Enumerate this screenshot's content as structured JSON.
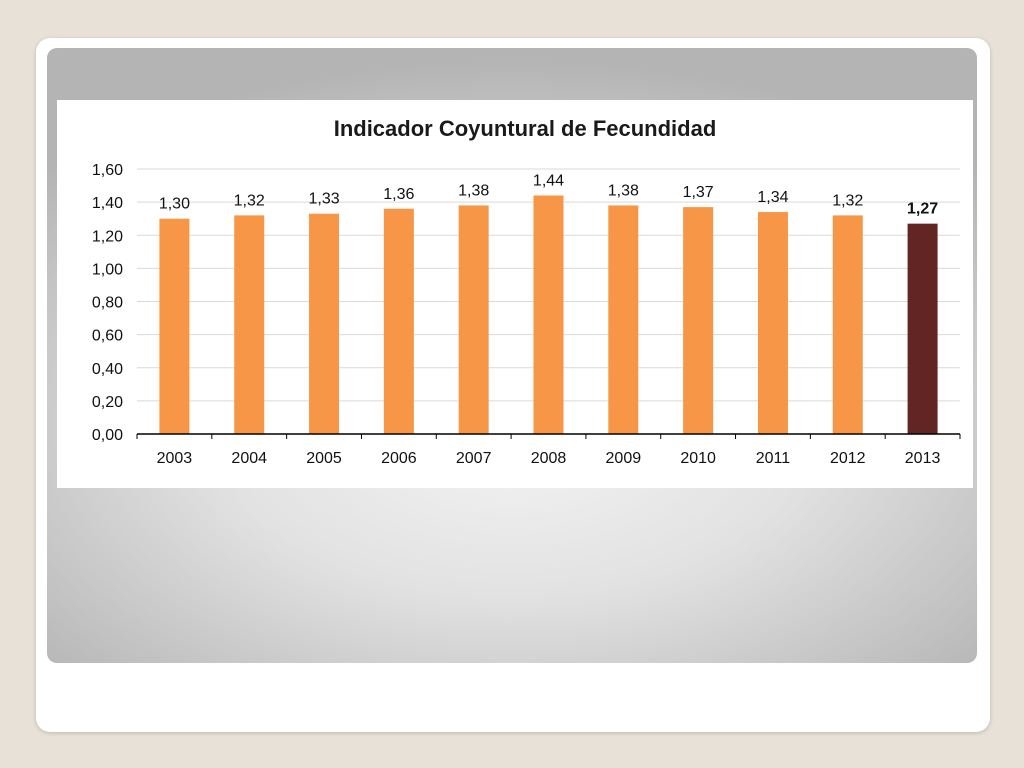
{
  "chart_data": {
    "type": "bar",
    "title": "Indicador Coyuntural de Fecundidad",
    "xlabel": "",
    "ylabel": "",
    "categories": [
      "2003",
      "2004",
      "2005",
      "2006",
      "2007",
      "2008",
      "2009",
      "2010",
      "2011",
      "2012",
      "2013"
    ],
    "values": [
      1.3,
      1.32,
      1.33,
      1.36,
      1.38,
      1.44,
      1.38,
      1.37,
      1.34,
      1.32,
      1.27
    ],
    "value_labels": [
      "1,30",
      "1,32",
      "1,33",
      "1,36",
      "1,38",
      "1,44",
      "1,38",
      "1,37",
      "1,34",
      "1,32",
      "1,27"
    ],
    "ylim": [
      0,
      1.6
    ],
    "yticks": [
      0,
      0.2,
      0.4,
      0.6,
      0.8,
      1.0,
      1.2,
      1.4,
      1.6
    ],
    "ytick_labels": [
      "0,00",
      "0,20",
      "0,40",
      "0,60",
      "0,80",
      "1,00",
      "1,20",
      "1,40",
      "1,60"
    ],
    "grid": true,
    "legend": "none",
    "highlight_index": 10,
    "colors": {
      "bar": "#f79646",
      "highlight_bar": "#632523",
      "highlight_label": "#e8121a",
      "gridline": "#d9d9d9",
      "axis": "#000000"
    }
  }
}
